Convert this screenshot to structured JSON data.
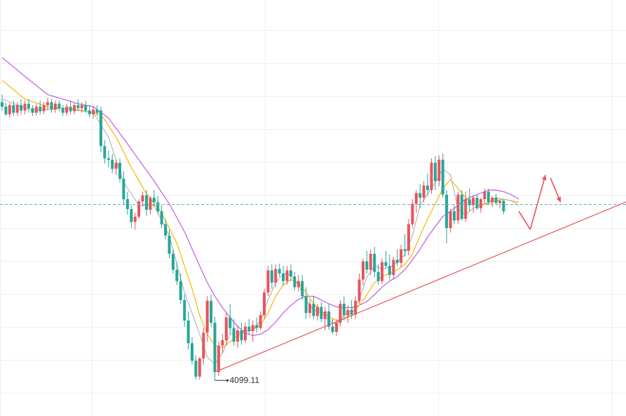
{
  "chart_data": {
    "type": "candlestick",
    "title": "",
    "xlabel": "",
    "ylabel": "",
    "ylim": [
      4090,
      4560
    ],
    "grid": true,
    "colors": {
      "up": "#e8545c",
      "down": "#26a69a",
      "ma_fast": "#b8b8b8",
      "ma_mid": "#f5b700",
      "ma_slow": "#c15ce0",
      "trendline": "#e8545c",
      "current_price_line": "#5ab4a6",
      "forecast_arrow": "#e8545c",
      "grid": "#efefef"
    },
    "current_price": 4331,
    "low_marker": {
      "label": "4099.11",
      "value": 4099.11,
      "candle_index": 56
    },
    "candles": [
      [
        4466,
        4476,
        4455,
        4460
      ],
      [
        4460,
        4465,
        4448,
        4450
      ],
      [
        4450,
        4465,
        4446,
        4462
      ],
      [
        4462,
        4468,
        4448,
        4452
      ],
      [
        4452,
        4466,
        4448,
        4462
      ],
      [
        4462,
        4470,
        4450,
        4455
      ],
      [
        4455,
        4468,
        4450,
        4464
      ],
      [
        4464,
        4470,
        4452,
        4458
      ],
      [
        4458,
        4462,
        4448,
        4452
      ],
      [
        4452,
        4464,
        4448,
        4460
      ],
      [
        4460,
        4468,
        4450,
        4454
      ],
      [
        4454,
        4466,
        4450,
        4462
      ],
      [
        4462,
        4472,
        4455,
        4466
      ],
      [
        4466,
        4470,
        4452,
        4456
      ],
      [
        4456,
        4468,
        4452,
        4464
      ],
      [
        4464,
        4468,
        4454,
        4458
      ],
      [
        4458,
        4462,
        4448,
        4452
      ],
      [
        4452,
        4464,
        4448,
        4460
      ],
      [
        4460,
        4468,
        4450,
        4454
      ],
      [
        4454,
        4466,
        4450,
        4462
      ],
      [
        4462,
        4470,
        4455,
        4458
      ],
      [
        4458,
        4466,
        4452,
        4462
      ],
      [
        4462,
        4468,
        4452,
        4455
      ],
      [
        4455,
        4462,
        4446,
        4450
      ],
      [
        4450,
        4460,
        4444,
        4456
      ],
      [
        4456,
        4462,
        4448,
        4452
      ],
      [
        4455,
        4460,
        4400,
        4408
      ],
      [
        4408,
        4416,
        4385,
        4392
      ],
      [
        4392,
        4402,
        4380,
        4390
      ],
      [
        4390,
        4398,
        4372,
        4378
      ],
      [
        4378,
        4390,
        4370,
        4386
      ],
      [
        4386,
        4392,
        4360,
        4365
      ],
      [
        4365,
        4375,
        4330,
        4338
      ],
      [
        4338,
        4348,
        4318,
        4325
      ],
      [
        4325,
        4330,
        4300,
        4308
      ],
      [
        4308,
        4320,
        4298,
        4315
      ],
      [
        4315,
        4338,
        4312,
        4335
      ],
      [
        4335,
        4348,
        4328,
        4343
      ],
      [
        4343,
        4350,
        4316,
        4324
      ],
      [
        4324,
        4342,
        4318,
        4340
      ],
      [
        4340,
        4350,
        4328,
        4334
      ],
      [
        4334,
        4342,
        4318,
        4322
      ],
      [
        4322,
        4330,
        4300,
        4305
      ],
      [
        4305,
        4312,
        4285,
        4290
      ],
      [
        4290,
        4298,
        4260,
        4266
      ],
      [
        4266,
        4272,
        4240,
        4245
      ],
      [
        4245,
        4255,
        4225,
        4230
      ],
      [
        4230,
        4240,
        4200,
        4205
      ],
      [
        4205,
        4212,
        4170,
        4178
      ],
      [
        4178,
        4190,
        4140,
        4148
      ],
      [
        4148,
        4156,
        4120,
        4125
      ],
      [
        4125,
        4132,
        4100,
        4104
      ],
      [
        4104,
        4130,
        4100,
        4128
      ],
      [
        4128,
        4168,
        4120,
        4162
      ],
      [
        4162,
        4210,
        4150,
        4204
      ],
      [
        4204,
        4212,
        4170,
        4175
      ],
      [
        4175,
        4183,
        4099,
        4110
      ],
      [
        4110,
        4150,
        4105,
        4145
      ],
      [
        4145,
        4160,
        4135,
        4152
      ],
      [
        4152,
        4190,
        4145,
        4182
      ],
      [
        4182,
        4200,
        4160,
        4168
      ],
      [
        4168,
        4180,
        4145,
        4150
      ],
      [
        4150,
        4172,
        4142,
        4165
      ],
      [
        4165,
        4175,
        4146,
        4152
      ],
      [
        4152,
        4175,
        4148,
        4170
      ],
      [
        4170,
        4180,
        4160,
        4164
      ],
      [
        4164,
        4178,
        4150,
        4172
      ],
      [
        4172,
        4182,
        4162,
        4168
      ],
      [
        4168,
        4190,
        4165,
        4185
      ],
      [
        4185,
        4220,
        4180,
        4215
      ],
      [
        4215,
        4250,
        4210,
        4244
      ],
      [
        4244,
        4252,
        4220,
        4228
      ],
      [
        4228,
        4252,
        4222,
        4246
      ],
      [
        4246,
        4253,
        4236,
        4240
      ],
      [
        4240,
        4250,
        4224,
        4230
      ],
      [
        4230,
        4250,
        4225,
        4244
      ],
      [
        4244,
        4252,
        4230,
        4236
      ],
      [
        4236,
        4242,
        4218,
        4222
      ],
      [
        4222,
        4238,
        4216,
        4230
      ],
      [
        4230,
        4238,
        4205,
        4210
      ],
      [
        4210,
        4222,
        4180,
        4188
      ],
      [
        4188,
        4205,
        4182,
        4200
      ],
      [
        4200,
        4210,
        4180,
        4184
      ],
      [
        4184,
        4200,
        4178,
        4196
      ],
      [
        4196,
        4202,
        4176,
        4180
      ],
      [
        4180,
        4196,
        4165,
        4190
      ],
      [
        4190,
        4200,
        4166,
        4170
      ],
      [
        4170,
        4180,
        4160,
        4163
      ],
      [
        4163,
        4180,
        4158,
        4175
      ],
      [
        4175,
        4205,
        4170,
        4200
      ],
      [
        4200,
        4210,
        4178,
        4185
      ],
      [
        4185,
        4198,
        4175,
        4192
      ],
      [
        4192,
        4205,
        4180,
        4186
      ],
      [
        4186,
        4210,
        4180,
        4204
      ],
      [
        4204,
        4240,
        4200,
        4232
      ],
      [
        4232,
        4260,
        4225,
        4256
      ],
      [
        4256,
        4270,
        4240,
        4245
      ],
      [
        4245,
        4272,
        4238,
        4266
      ],
      [
        4266,
        4275,
        4235,
        4242
      ],
      [
        4242,
        4252,
        4225,
        4230
      ],
      [
        4230,
        4260,
        4226,
        4255
      ],
      [
        4255,
        4270,
        4246,
        4250
      ],
      [
        4250,
        4265,
        4232,
        4238
      ],
      [
        4238,
        4262,
        4232,
        4258
      ],
      [
        4258,
        4272,
        4250,
        4254
      ],
      [
        4254,
        4278,
        4248,
        4272
      ],
      [
        4272,
        4292,
        4262,
        4270
      ],
      [
        4270,
        4312,
        4264,
        4305
      ],
      [
        4305,
        4338,
        4300,
        4332
      ],
      [
        4332,
        4350,
        4320,
        4346
      ],
      [
        4346,
        4358,
        4326,
        4340
      ],
      [
        4340,
        4362,
        4334,
        4356
      ],
      [
        4356,
        4372,
        4342,
        4350
      ],
      [
        4350,
        4392,
        4345,
        4386
      ],
      [
        4386,
        4395,
        4350,
        4362
      ],
      [
        4362,
        4396,
        4355,
        4390
      ],
      [
        4390,
        4398,
        4340,
        4344
      ],
      [
        4344,
        4350,
        4280,
        4300
      ],
      [
        4300,
        4325,
        4294,
        4322
      ],
      [
        4322,
        4330,
        4305,
        4310
      ],
      [
        4310,
        4348,
        4305,
        4344
      ],
      [
        4344,
        4350,
        4310,
        4312
      ],
      [
        4312,
        4348,
        4308,
        4338
      ],
      [
        4338,
        4352,
        4322,
        4330
      ],
      [
        4330,
        4344,
        4320,
        4340
      ],
      [
        4340,
        4344,
        4324,
        4326
      ],
      [
        4326,
        4340,
        4320,
        4338
      ],
      [
        4338,
        4352,
        4332,
        4348
      ],
      [
        4348,
        4352,
        4330,
        4334
      ],
      [
        4334,
        4342,
        4328,
        4340
      ],
      [
        4340,
        4345,
        4330,
        4333
      ],
      [
        4333,
        4338,
        4326,
        4336
      ],
      [
        4336,
        4338,
        4318,
        4322
      ]
    ],
    "ma_fast": [
      [
        0,
        4470
      ],
      [
        8,
        4455
      ],
      [
        16,
        4458
      ],
      [
        24,
        4452
      ],
      [
        28,
        4420
      ],
      [
        32,
        4360
      ],
      [
        36,
        4330
      ],
      [
        40,
        4330
      ],
      [
        44,
        4290
      ],
      [
        48,
        4215
      ],
      [
        52,
        4160
      ],
      [
        54,
        4130
      ],
      [
        56,
        4120
      ],
      [
        58,
        4135
      ],
      [
        60,
        4160
      ],
      [
        62,
        4162
      ],
      [
        66,
        4165
      ],
      [
        68,
        4178
      ],
      [
        70,
        4205
      ],
      [
        72,
        4228
      ],
      [
        74,
        4240
      ],
      [
        76,
        4238
      ],
      [
        78,
        4225
      ],
      [
        80,
        4205
      ],
      [
        82,
        4192
      ],
      [
        84,
        4188
      ],
      [
        86,
        4178
      ],
      [
        88,
        4172
      ],
      [
        90,
        4185
      ],
      [
        92,
        4192
      ],
      [
        94,
        4205
      ],
      [
        96,
        4235
      ],
      [
        98,
        4250
      ],
      [
        100,
        4246
      ],
      [
        102,
        4248
      ],
      [
        104,
        4255
      ],
      [
        106,
        4265
      ],
      [
        108,
        4290
      ],
      [
        110,
        4330
      ],
      [
        112,
        4345
      ],
      [
        114,
        4360
      ],
      [
        116,
        4378
      ],
      [
        118,
        4370
      ],
      [
        120,
        4325
      ],
      [
        122,
        4318
      ],
      [
        124,
        4326
      ],
      [
        126,
        4330
      ],
      [
        128,
        4334
      ],
      [
        130,
        4340
      ],
      [
        132,
        4338
      ],
      [
        134,
        4336
      ],
      [
        136,
        4330
      ]
    ],
    "ma_mid": [
      [
        0,
        4495
      ],
      [
        6,
        4470
      ],
      [
        12,
        4460
      ],
      [
        20,
        4456
      ],
      [
        26,
        4450
      ],
      [
        30,
        4420
      ],
      [
        34,
        4380
      ],
      [
        38,
        4345
      ],
      [
        42,
        4320
      ],
      [
        46,
        4280
      ],
      [
        50,
        4220
      ],
      [
        52,
        4185
      ],
      [
        54,
        4160
      ],
      [
        56,
        4145
      ],
      [
        58,
        4142
      ],
      [
        60,
        4150
      ],
      [
        62,
        4158
      ],
      [
        64,
        4163
      ],
      [
        66,
        4166
      ],
      [
        68,
        4172
      ],
      [
        70,
        4188
      ],
      [
        72,
        4210
      ],
      [
        74,
        4225
      ],
      [
        76,
        4232
      ],
      [
        78,
        4228
      ],
      [
        80,
        4215
      ],
      [
        82,
        4200
      ],
      [
        84,
        4190
      ],
      [
        86,
        4183
      ],
      [
        88,
        4178
      ],
      [
        90,
        4180
      ],
      [
        92,
        4188
      ],
      [
        94,
        4198
      ],
      [
        96,
        4212
      ],
      [
        98,
        4228
      ],
      [
        100,
        4236
      ],
      [
        102,
        4240
      ],
      [
        104,
        4245
      ],
      [
        106,
        4252
      ],
      [
        108,
        4266
      ],
      [
        110,
        4290
      ],
      [
        112,
        4312
      ],
      [
        114,
        4332
      ],
      [
        116,
        4352
      ],
      [
        118,
        4364
      ],
      [
        120,
        4352
      ],
      [
        122,
        4340
      ],
      [
        124,
        4332
      ],
      [
        126,
        4330
      ],
      [
        128,
        4332
      ],
      [
        130,
        4336
      ],
      [
        132,
        4338
      ],
      [
        134,
        4336
      ],
      [
        136,
        4334
      ]
    ],
    "ma_slow": [
      [
        0,
        4525
      ],
      [
        6,
        4500
      ],
      [
        12,
        4476
      ],
      [
        20,
        4464
      ],
      [
        24,
        4460
      ],
      [
        28,
        4445
      ],
      [
        32,
        4418
      ],
      [
        36,
        4390
      ],
      [
        40,
        4362
      ],
      [
        44,
        4332
      ],
      [
        48,
        4295
      ],
      [
        52,
        4250
      ],
      [
        54,
        4228
      ],
      [
        56,
        4210
      ],
      [
        58,
        4195
      ],
      [
        60,
        4182
      ],
      [
        62,
        4170
      ],
      [
        64,
        4162
      ],
      [
        66,
        4158
      ],
      [
        68,
        4160
      ],
      [
        70,
        4166
      ],
      [
        72,
        4176
      ],
      [
        74,
        4188
      ],
      [
        76,
        4198
      ],
      [
        78,
        4206
      ],
      [
        80,
        4210
      ],
      [
        82,
        4210
      ],
      [
        84,
        4205
      ],
      [
        86,
        4200
      ],
      [
        88,
        4196
      ],
      [
        90,
        4195
      ],
      [
        92,
        4195
      ],
      [
        94,
        4198
      ],
      [
        96,
        4203
      ],
      [
        98,
        4212
      ],
      [
        100,
        4222
      ],
      [
        102,
        4230
      ],
      [
        104,
        4236
      ],
      [
        106,
        4245
      ],
      [
        108,
        4258
      ],
      [
        110,
        4272
      ],
      [
        112,
        4288
      ],
      [
        114,
        4302
      ],
      [
        116,
        4315
      ],
      [
        118,
        4322
      ],
      [
        120,
        4330
      ],
      [
        122,
        4338
      ],
      [
        124,
        4342
      ],
      [
        126,
        4346
      ],
      [
        128,
        4350
      ],
      [
        130,
        4350
      ],
      [
        132,
        4348
      ],
      [
        134,
        4344
      ],
      [
        136,
        4338
      ]
    ],
    "trendline": {
      "from": [
        56,
        4110
      ],
      "to": [
        166,
        4338
      ]
    },
    "forecast_path": [
      [
        136,
        4322
      ],
      [
        139,
        4298
      ],
      [
        143,
        4370
      ],
      [
        147,
        4334
      ]
    ]
  }
}
